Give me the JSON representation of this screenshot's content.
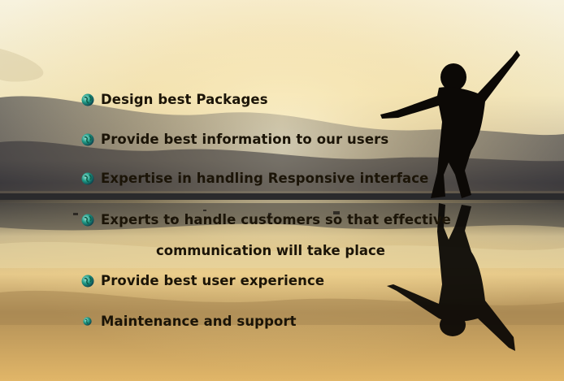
{
  "list": {
    "items": [
      "Design best Packages",
      "Provide best information to our users",
      "Expertise in handling Responsive interface",
      "Experts to handle customers  so that effective",
      "Provide best user experience",
      "Maintenance and support"
    ],
    "continuation": "communication will take place"
  },
  "icons": {
    "bullet": "globe-icon"
  },
  "colors": {
    "text": "#1b1407",
    "sky_top": "#f6f0d6",
    "sunset": "#f3c873",
    "silhouette": "#0c0906"
  }
}
